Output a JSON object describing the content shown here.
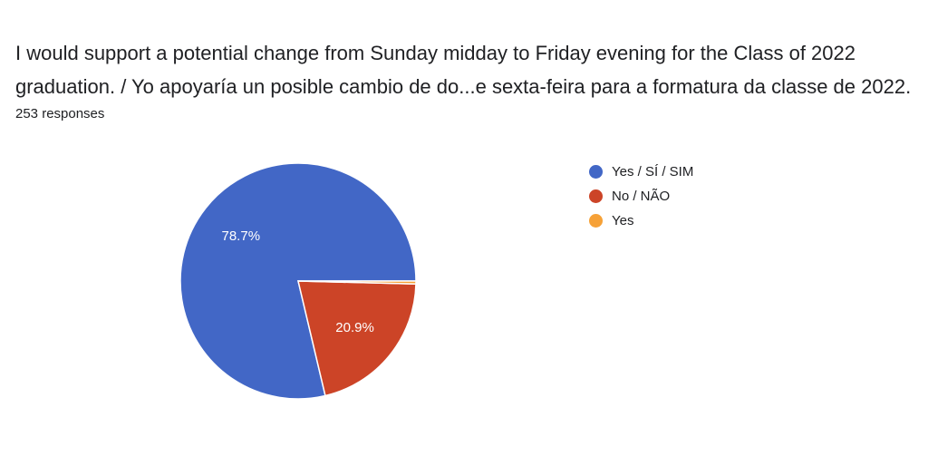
{
  "header": {
    "title_line1": "I would support a potential change from Sunday midday to Friday evening for the Class of 2022",
    "title_line2": "graduation. / Yo apoyaría un posible cambio de do...e sexta-feira para a formatura da classe de 2022.",
    "responses": "253 responses"
  },
  "chart_data": {
    "type": "pie",
    "title": "",
    "slices": [
      {
        "label": "Yes / SÍ / SIM",
        "value": 78.7,
        "display": "78.7%",
        "color": "#4267c6"
      },
      {
        "label": "No / NÃO",
        "value": 20.9,
        "display": "20.9%",
        "color": "#cc4427"
      },
      {
        "label": "Yes",
        "value": 0.4,
        "display": "",
        "color": "#f6a137"
      }
    ],
    "legend_position": "right"
  }
}
